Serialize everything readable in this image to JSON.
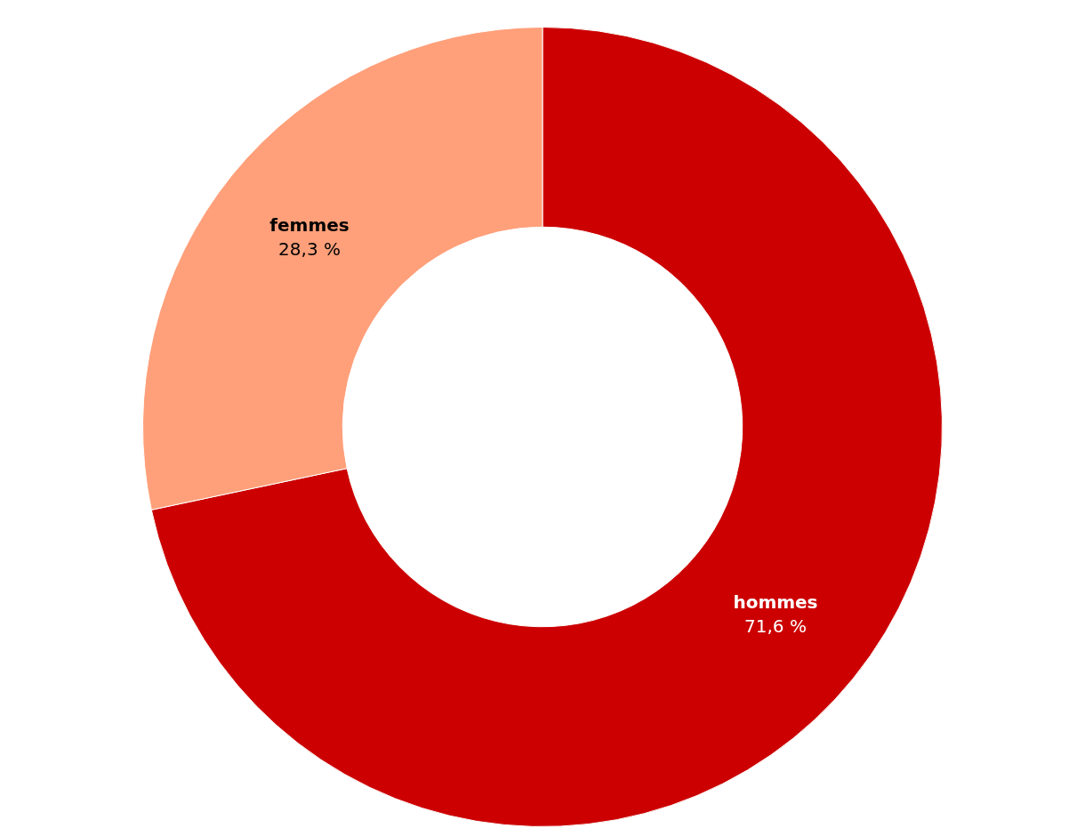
{
  "chart_data": {
    "type": "donut",
    "categories": [
      "hommes",
      "femmes"
    ],
    "values": [
      71.6,
      28.3
    ],
    "colors": [
      "#cc0000",
      "#ffa07a"
    ],
    "value_labels": [
      "71,6 %",
      "28,3 %"
    ],
    "legend": false
  }
}
